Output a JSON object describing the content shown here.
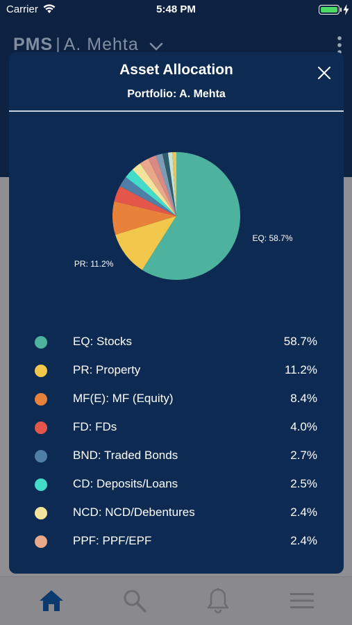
{
  "status_bar": {
    "carrier": "Carrier",
    "time": "5:48 PM",
    "battery_color": "#4cd964"
  },
  "header": {
    "brand": "PMS",
    "separator": "|",
    "account": "A. Mehta",
    "chevron_icon": "chevron-down-icon",
    "menu_icon": "more-vertical-icon"
  },
  "modal": {
    "title": "Asset Allocation",
    "subtitle": "Portfolio: A. Mehta",
    "close_icon": "close-icon",
    "background": "#0d2a52"
  },
  "chart_data": {
    "type": "pie",
    "slices": [
      {
        "label": "EQ: Stocks",
        "short": "EQ",
        "value": 58.7,
        "color": "#4db39f"
      },
      {
        "label": "PR: Property",
        "short": "PR",
        "value": 11.2,
        "color": "#f1c84b"
      },
      {
        "label": "MF(E): MF (Equity)",
        "short": "MF(E)",
        "value": 8.4,
        "color": "#e8813a"
      },
      {
        "label": "FD: FDs",
        "short": "FD",
        "value": 4.0,
        "color": "#e45649"
      },
      {
        "label": "BND: Traded Bonds",
        "short": "BND",
        "value": 2.7,
        "color": "#4f7fa6"
      },
      {
        "label": "CD: Deposits/Loans",
        "short": "CD",
        "value": 2.5,
        "color": "#43dcc8"
      },
      {
        "label": "NCD: NCD/Debentures",
        "short": "NCD",
        "value": 2.4,
        "color": "#f4e39b"
      },
      {
        "label": "PPF: PPF/EPF",
        "short": "PPF",
        "value": 2.4,
        "color": "#e9a889"
      },
      {
        "label": "",
        "short": "",
        "value": 2.0,
        "color": "#d98a84"
      },
      {
        "label": "",
        "short": "",
        "value": 1.7,
        "color": "#7c9cb3"
      },
      {
        "label": "",
        "short": "",
        "value": 1.4,
        "color": "#2f5d6e"
      },
      {
        "label": "",
        "short": "",
        "value": 1.1,
        "color": "#c9e0d6"
      },
      {
        "label": "",
        "short": "",
        "value": 1.0,
        "color": "#e6c65a"
      }
    ],
    "data_labels": [
      {
        "text": "EQ: 58.7%",
        "slice": 0
      },
      {
        "text": "PR: 11.2%",
        "slice": 1
      }
    ]
  },
  "legend": [
    {
      "label": "EQ: Stocks",
      "value": "58.7%",
      "color": "#4db39f"
    },
    {
      "label": "PR: Property",
      "value": "11.2%",
      "color": "#f1c84b"
    },
    {
      "label": "MF(E): MF (Equity)",
      "value": "8.4%",
      "color": "#e8813a"
    },
    {
      "label": "FD: FDs",
      "value": "4.0%",
      "color": "#e45649"
    },
    {
      "label": "BND: Traded Bonds",
      "value": "2.7%",
      "color": "#4f7fa6"
    },
    {
      "label": "CD: Deposits/Loans",
      "value": "2.5%",
      "color": "#43dcc8"
    },
    {
      "label": "NCD: NCD/Debentures",
      "value": "2.4%",
      "color": "#f4e39b"
    },
    {
      "label": "PPF: PPF/EPF",
      "value": "2.4%",
      "color": "#e9a889"
    }
  ],
  "tab_bar": {
    "items": [
      {
        "icon": "home-icon",
        "active": true
      },
      {
        "icon": "search-icon",
        "active": false
      },
      {
        "icon": "bell-icon",
        "active": false
      },
      {
        "icon": "menu-icon",
        "active": false
      }
    ],
    "active_color": "#0d3a6e",
    "inactive_color": "#6b6b70"
  }
}
